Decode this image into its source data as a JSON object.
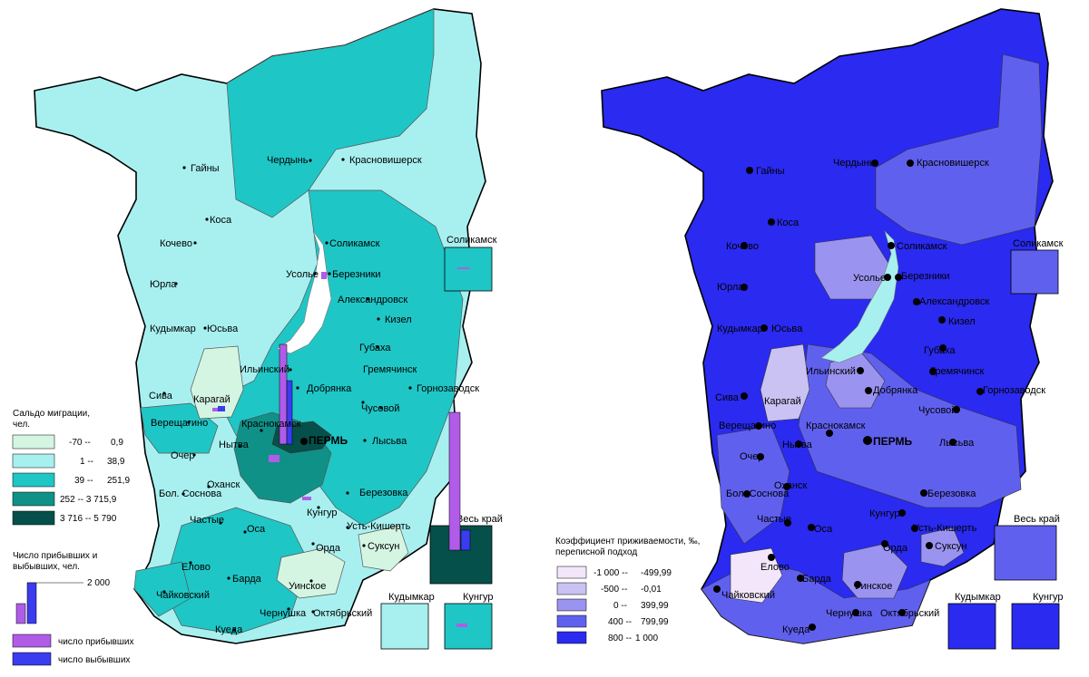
{
  "left_map": {
    "legend_title": "Сальдо миграции, чел.",
    "legend_title_lines": [
      "Сальдо миграции,",
      "чел."
    ],
    "classes": [
      {
        "from": "-70 --",
        "to": "0,9",
        "color": "#d5f5e3"
      },
      {
        "from": "1 --",
        "to": "38,9",
        "color": "#a8f0f0"
      },
      {
        "from": "39 --",
        "to": "251,9",
        "color": "#1fc6c6"
      },
      {
        "from": "252 -- 3 715,9",
        "to": "",
        "color": "#0f9188"
      },
      {
        "from": "3 716 -- 5 790",
        "to": "",
        "color": "#05504b"
      }
    ],
    "bar_legend_title_lines": [
      "Число прибывших и",
      "выбывших, чел."
    ],
    "bar_legend_value": "2 000",
    "arrivals_label": "число прибывших",
    "departures_label": "число выбывших",
    "arrivals_color": "#b05ce8",
    "departures_color": "#3b3bef",
    "insets": [
      {
        "name": "Соликамск",
        "fill": "#1fc6c6"
      },
      {
        "name": "Весь край",
        "fill": "#05504b"
      },
      {
        "name": "Кудымкар",
        "fill": "#a8f0f0"
      },
      {
        "name": "Кунгур",
        "fill": "#1fc6c6"
      }
    ]
  },
  "right_map": {
    "legend_title_lines": [
      "Коэффициент приживаемости, ‰,",
      "переписной подход"
    ],
    "classes": [
      {
        "from": "-1 000 --",
        "to": "-499,99",
        "color": "#f3e6fb"
      },
      {
        "from": "-500 --",
        "to": "-0,01",
        "color": "#c9c2f3"
      },
      {
        "from": "0 --",
        "to": "399,99",
        "color": "#9a94f0"
      },
      {
        "from": "400 --",
        "to": "799,99",
        "color": "#6060ef"
      },
      {
        "from": "800 --",
        "to": "1 000",
        "color": "#2a2af0"
      }
    ],
    "insets": [
      {
        "name": "Соликамск",
        "fill": "#6060ef"
      },
      {
        "name": "Весь край",
        "fill": "#6060ef"
      },
      {
        "name": "Кудымкар",
        "fill": "#2a2af0"
      },
      {
        "name": "Кунгур",
        "fill": "#2a2af0"
      }
    ]
  },
  "places": {
    "gainy": "Гайны",
    "cherdyn": "Чердынь",
    "krasnovishersk": "Красновишерск",
    "kosa": "Коса",
    "kochevo": "Кочево",
    "solikamsk": "Соликамск",
    "usolye": "Усолье",
    "berezniki": "Березники",
    "yurla": "Юрла",
    "aleksandrovsk": "Александровск",
    "kudymkar": "Кудымкар",
    "yusva": "Юсьва",
    "kizel": "Кизел",
    "gubakha": "Губаха",
    "ilyinsky": "Ильинский",
    "gremyachinsk": "Гремячинск",
    "siva": "Сива",
    "karagai": "Карагай",
    "dobryanka": "Добрянка",
    "gornozavodsk": "Горнозаводск",
    "vereshchagino": "Верещагино",
    "krasnokamsk": "Краснокамск",
    "chusovoy": "Чусовой",
    "perm": "ПЕРМЬ",
    "ocher": "Очер",
    "nytva": "Нытва",
    "lysva": "Лысьва",
    "okhansk": "Оханск",
    "bol_sosnova": "Бол. Соснова",
    "berezovka": "Березовка",
    "kungur": "Кунгур",
    "chastye": "Частые",
    "osa": "Оса",
    "ust_kishert": "Усть-Кишерть",
    "orda": "Орда",
    "suksun": "Суксун",
    "elovo": "Елово",
    "barda": "Барда",
    "chaikovsky": "Чайковский",
    "uinskoe": "Уинское",
    "chernushka": "Чернушка",
    "oktyabrsky": "Октябрьский",
    "kueda": "Куеда"
  }
}
